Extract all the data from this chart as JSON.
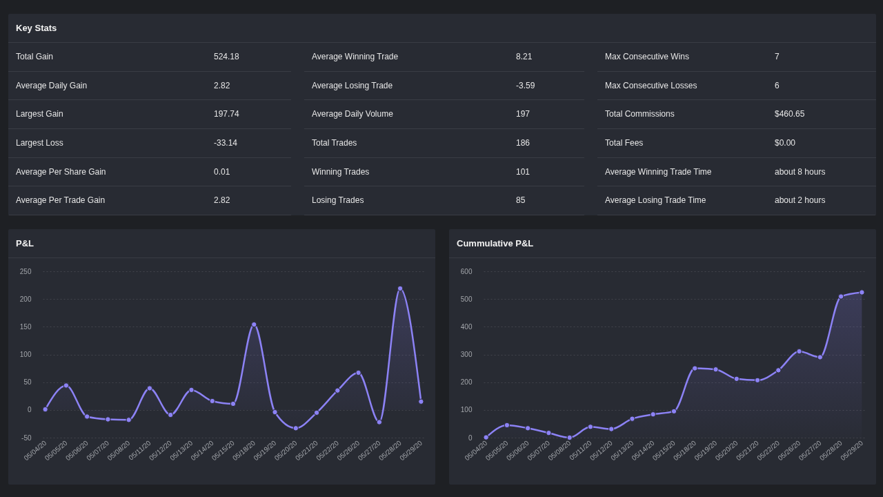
{
  "chart_data": [
    {
      "type": "other",
      "title": "Key Stats",
      "annotations": [
        "Total Gain",
        "524.18",
        "Average Winning Trade",
        "8.21",
        "Max Consecutive Wins",
        "7",
        "Average Daily Gain",
        "2.82",
        "Average Losing Trade",
        "-3.59",
        "Max Consecutive Losses",
        "6",
        "Largest Gain",
        "197.74",
        "Average Daily Volume",
        "197",
        "Total Commissions",
        "$460.65",
        "Largest Loss",
        "-33.14",
        "Total Trades",
        "186",
        "Total Fees",
        "$0.00",
        "Average Per Share Gain",
        "0.01",
        "Winning Trades",
        "101",
        "Average Winning Trade Time",
        "about 8 hours",
        "Average Per Trade Gain",
        "2.82",
        "Losing Trades",
        "85",
        "Average Losing Trade Time",
        "about 2 hours"
      ]
    },
    {
      "type": "area",
      "title": "P&L",
      "categories": [
        "05/04/20",
        "05/05/20",
        "05/06/20",
        "05/07/20",
        "05/08/20",
        "05/11/20",
        "05/12/20",
        "05/13/20",
        "05/14/20",
        "05/15/20",
        "05/18/20",
        "05/19/20",
        "05/20/20",
        "05/21/20",
        "05/22/20",
        "05/26/20",
        "05/27/20",
        "05/28/20",
        "05/29/20"
      ],
      "values": [
        1,
        44,
        -12,
        -17,
        -18,
        39,
        -9,
        36,
        16,
        11,
        154,
        -4,
        -33,
        -5,
        35,
        67,
        -22,
        219,
        15
      ],
      "color": "#8c82f5",
      "ylim": [
        -50,
        250
      ],
      "yticks": [
        -50,
        0,
        50,
        100,
        150,
        200,
        250
      ],
      "grid": "y",
      "marker": "circle"
    },
    {
      "type": "area",
      "title": "Cummulative P&L",
      "categories": [
        "05/04/20",
        "05/05/20",
        "05/06/20",
        "05/07/20",
        "05/08/20",
        "05/11/20",
        "05/12/20",
        "05/13/20",
        "05/14/20",
        "05/15/20",
        "05/18/20",
        "05/19/20",
        "05/20/20",
        "05/21/20",
        "05/22/20",
        "05/26/20",
        "05/27/20",
        "05/28/20",
        "05/29/20"
      ],
      "values": [
        1,
        45,
        34,
        17,
        0,
        39,
        31,
        68,
        84,
        95,
        250,
        246,
        212,
        207,
        243,
        311,
        290,
        509,
        524
      ],
      "color": "#8c82f5",
      "ylim": [
        0,
        600
      ],
      "yticks": [
        0,
        100,
        200,
        300,
        400,
        500,
        600
      ],
      "grid": "y",
      "marker": "circle"
    }
  ]
}
